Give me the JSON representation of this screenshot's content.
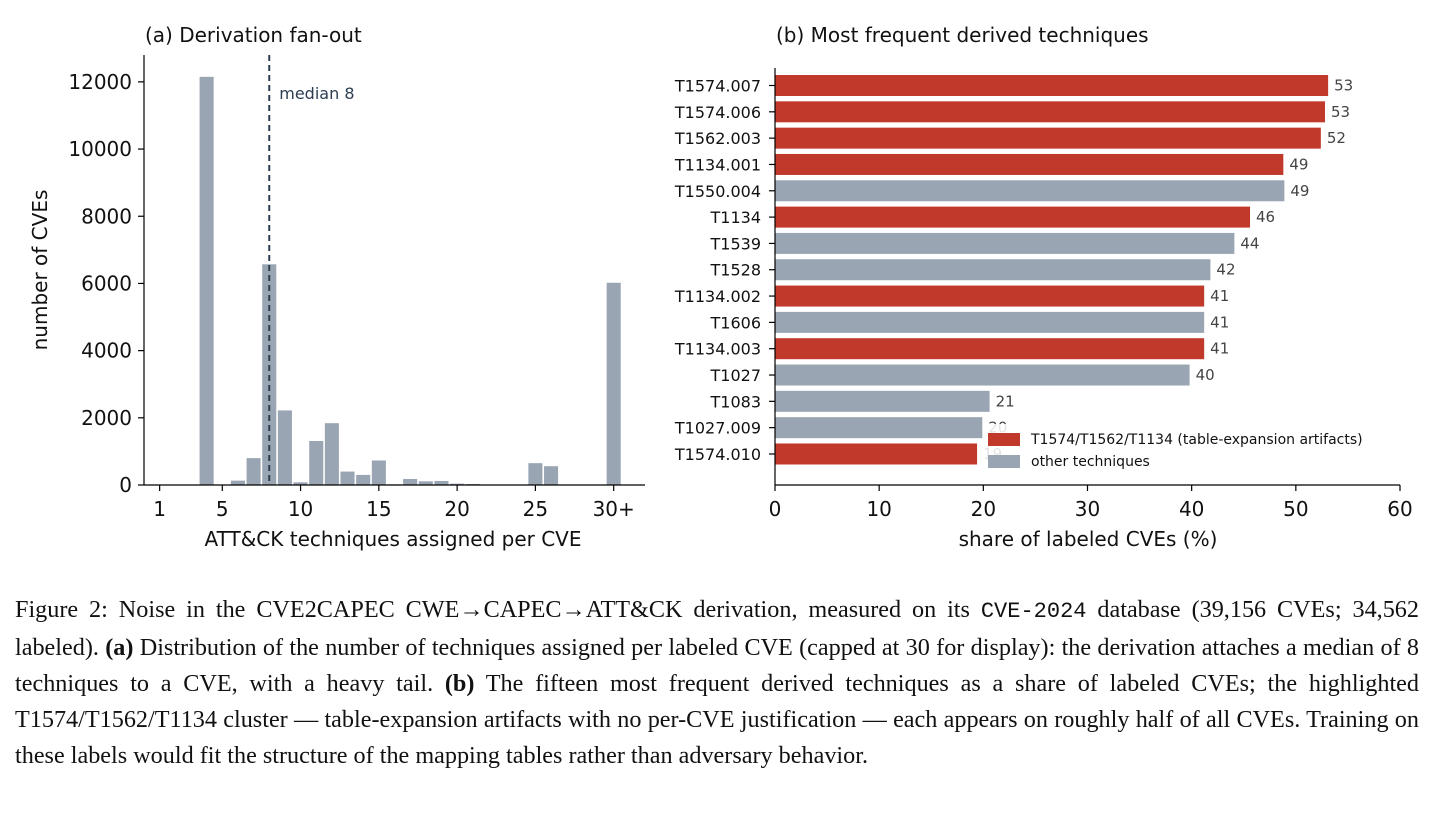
{
  "colors": {
    "grey_bar": "#9aa5b3",
    "red_bar": "#c0392b",
    "median_line": "#2c3e50",
    "value_label": "#444444"
  },
  "chart_data": [
    {
      "type": "bar",
      "title": "(a) Derivation fan-out",
      "xlabel": "ATT&CK techniques assigned per CVE",
      "ylabel": "number of CVEs",
      "xlim": [
        0,
        32
      ],
      "ylim": [
        0,
        12800
      ],
      "xticks": [
        1,
        5,
        10,
        15,
        20,
        25,
        30
      ],
      "xtick_labels": [
        "1",
        "5",
        "10",
        "15",
        "20",
        "25",
        "30+"
      ],
      "yticks": [
        0,
        2000,
        4000,
        6000,
        8000,
        10000,
        12000
      ],
      "ytick_labels": [
        "0",
        "2000",
        "4000",
        "6000",
        "8000",
        "10000",
        "12000"
      ],
      "median": 8,
      "median_label": "median 8",
      "bins": [
        4,
        5,
        6,
        7,
        8,
        9,
        10,
        11,
        12,
        13,
        14,
        15,
        16,
        17,
        18,
        19,
        20,
        21,
        22,
        23,
        24,
        25,
        26,
        27,
        28,
        29,
        30
      ],
      "values": [
        12150,
        0,
        130,
        800,
        6570,
        2220,
        80,
        1310,
        1840,
        400,
        300,
        730,
        20,
        180,
        110,
        120,
        40,
        30,
        0,
        0,
        0,
        650,
        560,
        0,
        0,
        0,
        6020
      ]
    },
    {
      "type": "bar",
      "orientation": "horizontal",
      "title": "(b) Most frequent derived techniques",
      "xlabel": "share of labeled CVEs (%)",
      "ylabel": "",
      "xlim": [
        0,
        60
      ],
      "xticks": [
        0,
        10,
        20,
        30,
        40,
        50,
        60
      ],
      "xtick_labels": [
        "0",
        "10",
        "20",
        "30",
        "40",
        "50",
        "60"
      ],
      "categories": [
        "T1574.007",
        "T1574.006",
        "T1562.003",
        "T1134.001",
        "T1550.004",
        "T1134",
        "T1539",
        "T1528",
        "T1134.002",
        "T1606",
        "T1134.003",
        "T1027",
        "T1083",
        "T1027.009",
        "T1574.010"
      ],
      "values": [
        53.1,
        52.8,
        52.4,
        48.8,
        48.9,
        45.6,
        44.1,
        41.8,
        41.2,
        41.2,
        41.2,
        39.8,
        20.6,
        19.9,
        19.4
      ],
      "value_labels": [
        "53",
        "53",
        "52",
        "49",
        "49",
        "46",
        "44",
        "42",
        "41",
        "41",
        "41",
        "40",
        "21",
        "20",
        "19"
      ],
      "highlight": [
        true,
        true,
        true,
        true,
        false,
        true,
        false,
        false,
        true,
        false,
        true,
        false,
        false,
        false,
        true
      ],
      "legend": {
        "location": "lower-right",
        "entries": [
          {
            "label": "T1574/T1562/T1134 (table-expansion artifacts)",
            "color": "#c0392b"
          },
          {
            "label": "other techniques",
            "color": "#9aa5b3"
          }
        ]
      }
    }
  ],
  "caption": {
    "s1": "Figure 2: Noise in the CVE2CAPEC CWE→CAPEC→ATT&CK derivation, measured on its ",
    "db_name": "CVE-2024",
    "s2": " database (39,156 CVEs; 34,562 labeled). ",
    "a_label": "(a)",
    "s3": " Distribution of the number of techniques assigned per labeled CVE (capped at 30 for display): the derivation attaches a median of 8 techniques to a CVE, with a heavy tail. ",
    "b_label": "(b)",
    "s4": " The fifteen most frequent derived techniques as a share of labeled CVEs; the highlighted T1574/T1562/T1134 cluster — table-expansion artifacts with no per-CVE justification — each appears on roughly half of all CVEs. Training on these labels would fit the structure of the mapping tables rather than adversary behavior."
  }
}
